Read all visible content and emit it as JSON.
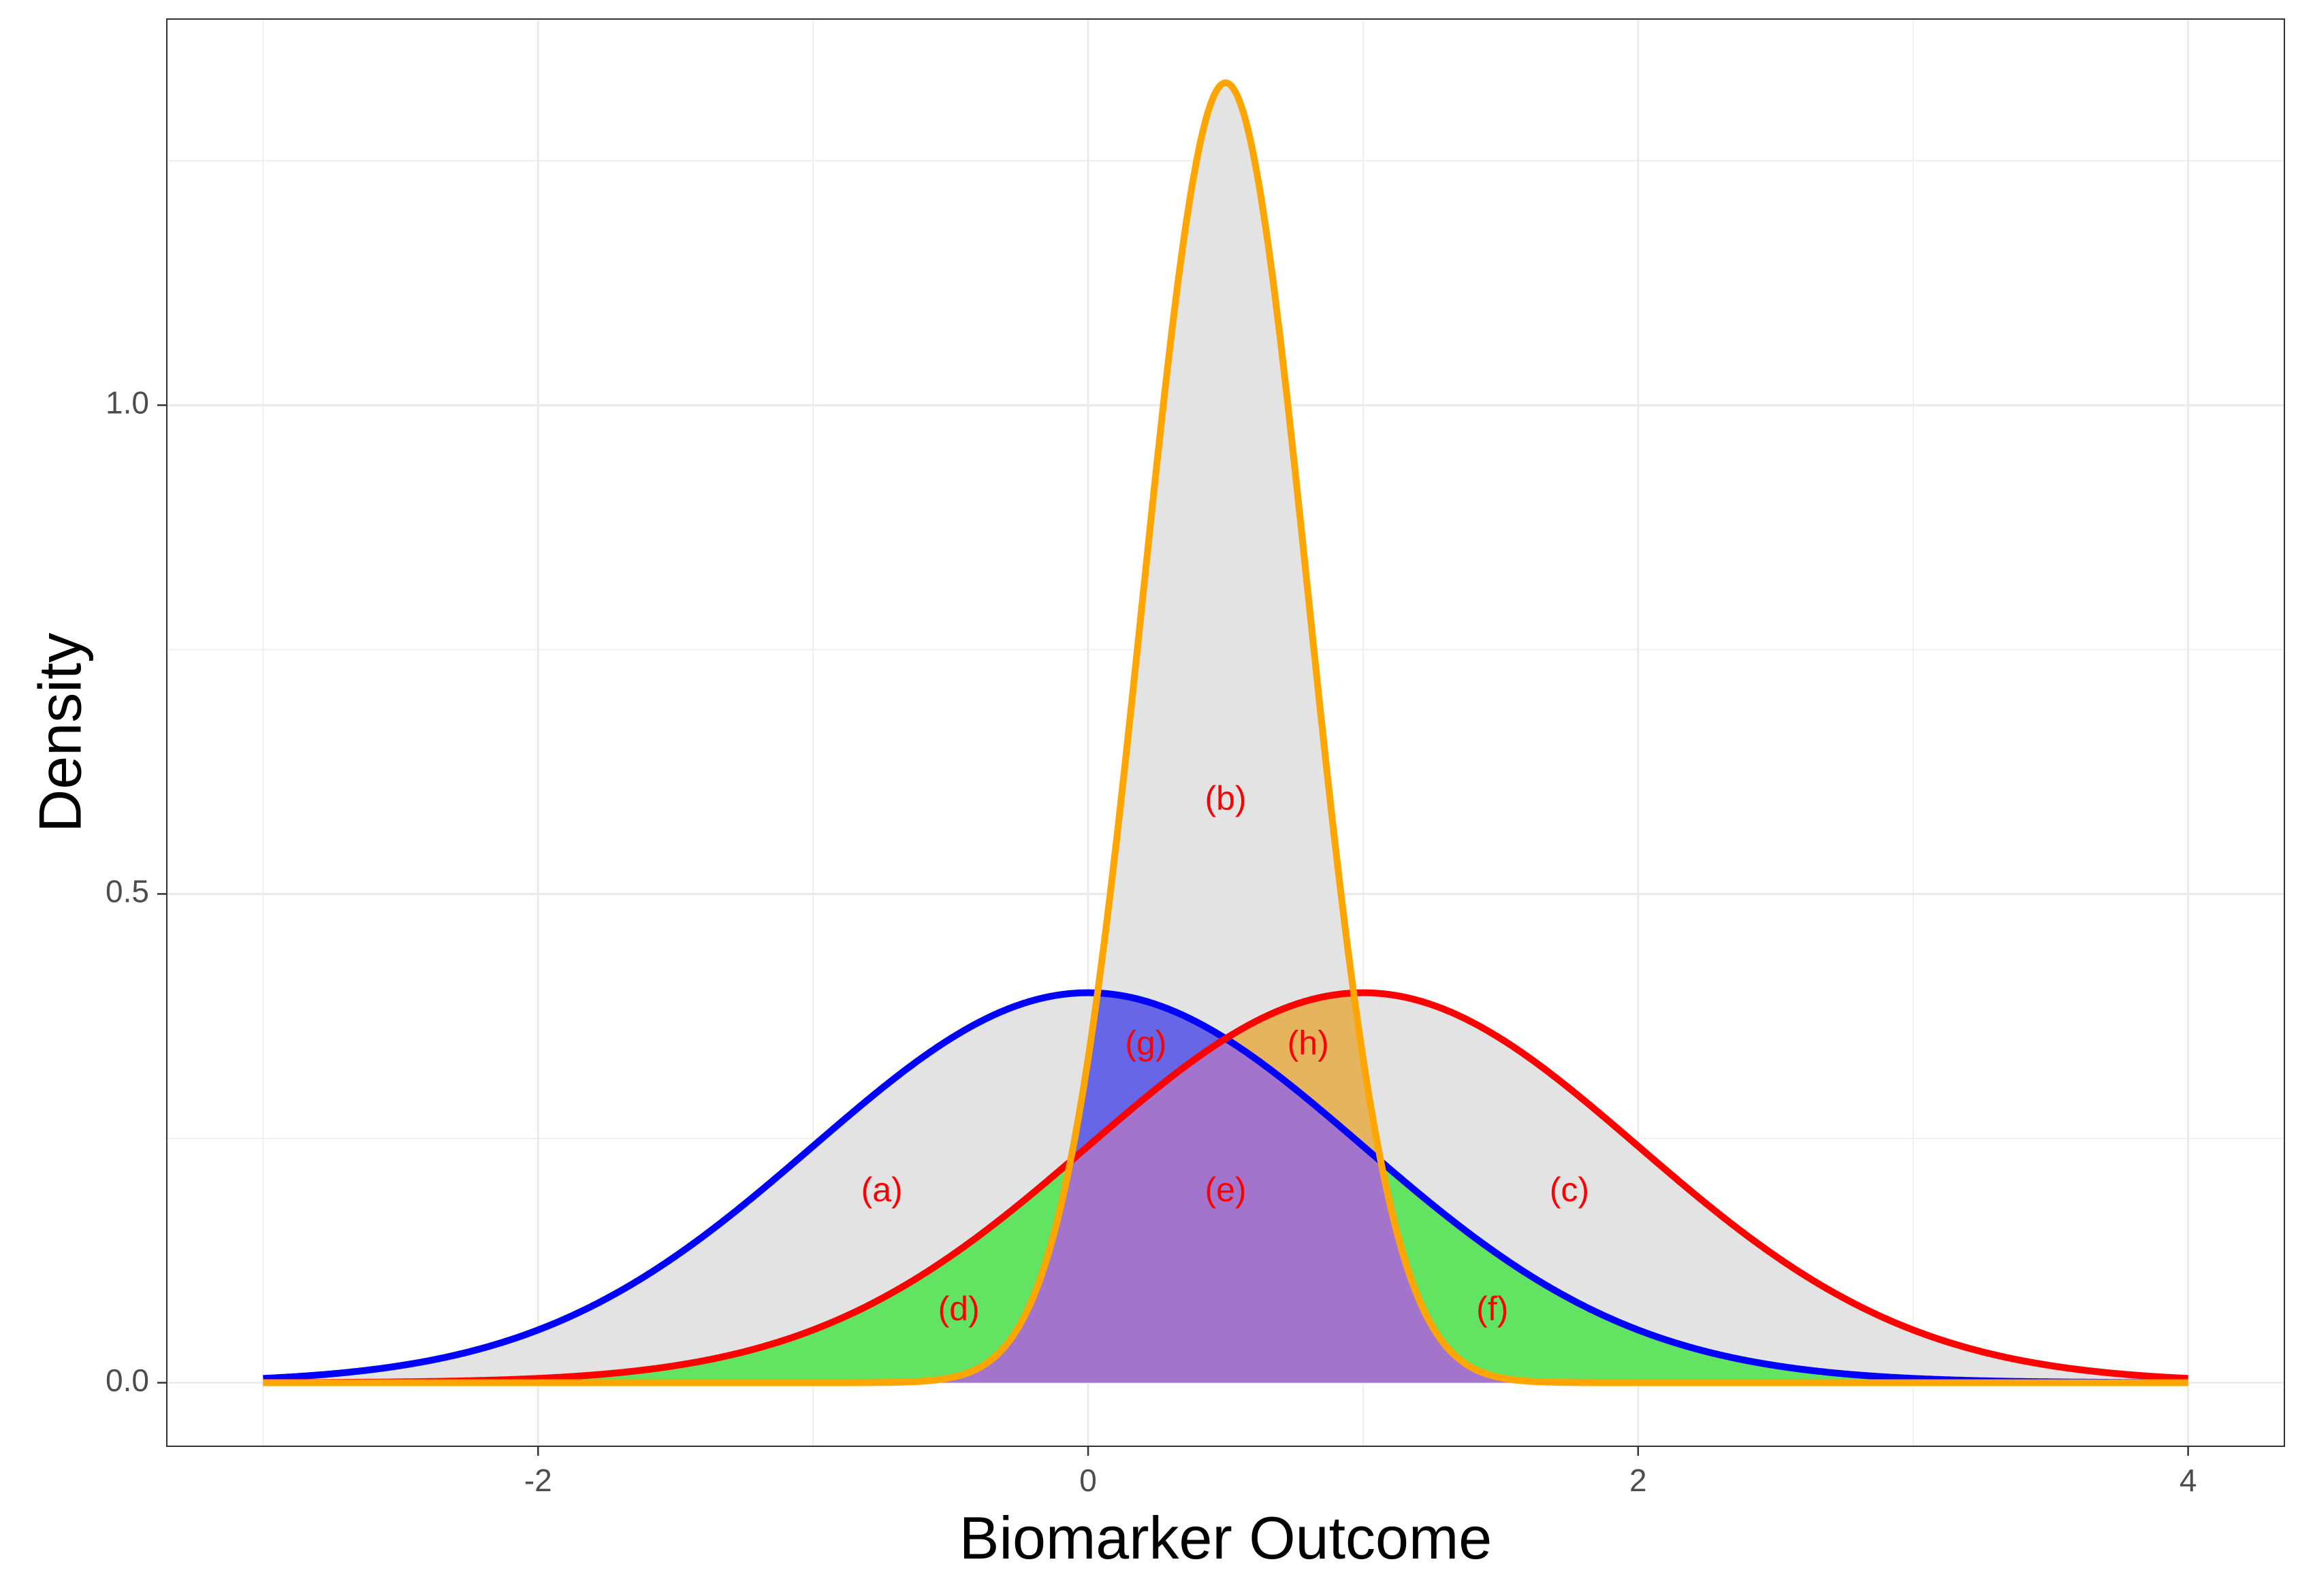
{
  "chart_data": {
    "type": "area",
    "title": "",
    "xlabel": "Biomarker Outcome",
    "ylabel": "Density",
    "xlim": [
      -3.35,
      4.35
    ],
    "ylim": [
      -0.065,
      1.395
    ],
    "x_ticks": [
      {
        "value": -2,
        "label": "-2"
      },
      {
        "value": 0,
        "label": "0"
      },
      {
        "value": 2,
        "label": "2"
      },
      {
        "value": 4,
        "label": "4"
      }
    ],
    "y_ticks": [
      {
        "value": 0.0,
        "label": "0.0"
      },
      {
        "value": 0.5,
        "label": "0.5"
      },
      {
        "value": 1.0,
        "label": "1.0"
      }
    ],
    "x_minor_ticks": [
      -3,
      -1,
      1,
      3
    ],
    "y_minor_ticks": [
      0.25,
      0.75,
      1.25
    ],
    "grid": true,
    "legend": "none",
    "x_range": [
      -3,
      4
    ],
    "series": [
      {
        "distribution": "normal",
        "mean": 0.0,
        "sd": 1.0,
        "color": "#0000ff"
      },
      {
        "distribution": "normal",
        "mean": 1.0,
        "sd": 1.0,
        "color": "#ff0000"
      },
      {
        "distribution": "normal",
        "mean": 0.5,
        "sd": 0.3,
        "color": "#ffa500"
      }
    ],
    "region_fills": {
      "union": "#e3e3e3",
      "all_three": "#a374cc",
      "blue_orange_only": "#6666e6",
      "red_orange_only": "#e5b45c",
      "blue_red_only": "#63e362"
    },
    "region_labels": [
      {
        "text": "(a)",
        "x": -0.75,
        "y": 0.195
      },
      {
        "text": "(b)",
        "x": 0.5,
        "y": 0.595
      },
      {
        "text": "(c)",
        "x": 1.75,
        "y": 0.195
      },
      {
        "text": "(d)",
        "x": -0.47,
        "y": 0.073
      },
      {
        "text": "(e)",
        "x": 0.5,
        "y": 0.195
      },
      {
        "text": "(f)",
        "x": 1.47,
        "y": 0.073
      },
      {
        "text": "(g)",
        "x": 0.21,
        "y": 0.345
      },
      {
        "text": "(h)",
        "x": 0.8,
        "y": 0.345
      }
    ]
  }
}
